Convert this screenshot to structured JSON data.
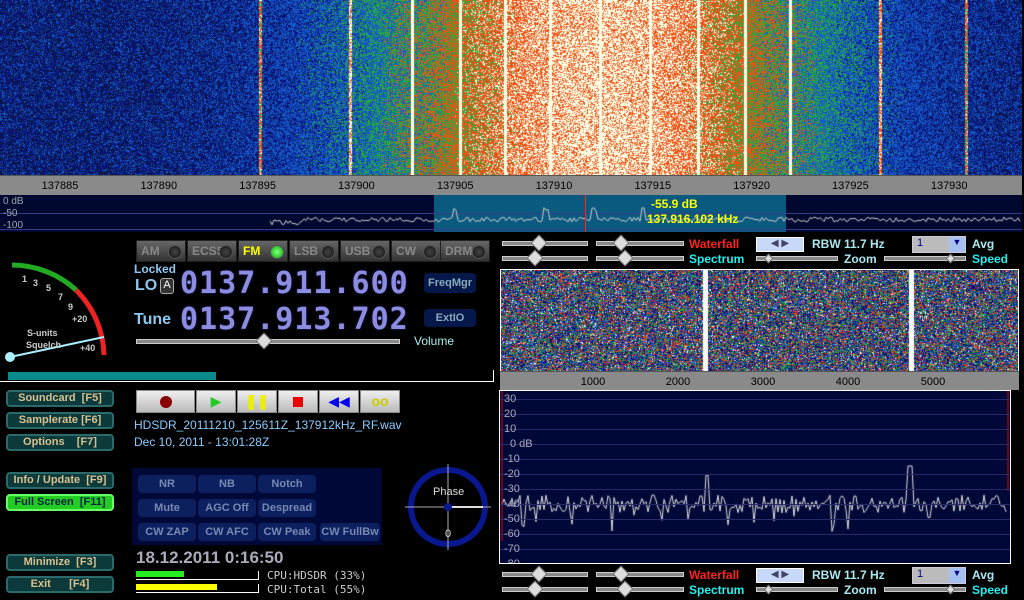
{
  "main_scale": {
    "ticks": [
      "137885",
      "137890",
      "137895",
      "137900",
      "137905",
      "137910",
      "137915",
      "137920",
      "137925",
      "137930"
    ]
  },
  "main_spectrum": {
    "y_labels": [
      "0 dB",
      "-50",
      "-100"
    ],
    "readout_level": "-55.9 dB",
    "readout_freq": "137.916.102 kHz"
  },
  "modes": [
    {
      "label": "AM",
      "active": false
    },
    {
      "label": "ECSS",
      "active": false
    },
    {
      "label": "FM",
      "active": true
    },
    {
      "label": "LSB",
      "active": false
    },
    {
      "label": "USB",
      "active": false
    },
    {
      "label": "CW",
      "active": false
    },
    {
      "label": "DRM",
      "active": false
    }
  ],
  "smeter": {
    "scale": [
      "1",
      "3",
      "5",
      "7",
      "9",
      "+20",
      "+40"
    ],
    "label1": "S-units",
    "label2": "Squelch"
  },
  "lo": {
    "locked": "Locked",
    "label": "LO",
    "badge": "A",
    "value": "0137.911.600"
  },
  "tune": {
    "label": "Tune",
    "value": "0137.913.702"
  },
  "buttons": {
    "freqmgr": "FreqMgr",
    "extio": "ExtIO",
    "volume": "Volume"
  },
  "volume_level": 0.48,
  "function_buttons": [
    {
      "label": "Soundcard  [F5]"
    },
    {
      "label": "Samplerate [F6]"
    },
    {
      "label": "Options    [F7]"
    },
    {
      "label": "Info / Update  [F9]"
    },
    {
      "label": "Full Screen  [F11]"
    },
    {
      "label": "Minimize  [F3]"
    },
    {
      "label": "Exit      [F4]"
    }
  ],
  "recording": {
    "filename": "HDSDR_20111210_125611Z_137912kHz_RF.wav",
    "date": "Dec 10, 2011 - 13:01:28Z"
  },
  "dsp": [
    "NR",
    "NB",
    "Notch",
    "Mute",
    "AGC Off",
    "Despread",
    "CW ZAP",
    "CW AFC",
    "CW Peak",
    "CW FullBw"
  ],
  "phase": {
    "label": "Phase",
    "value": "0"
  },
  "clock": "18.12.2011 0:16:50",
  "cpu": {
    "hdsdr": "CPU:HDSDR (33%)",
    "total": "CPU:Total (55%)",
    "hdsdr_pct": 33,
    "total_pct": 55
  },
  "audio_controls": {
    "waterfall": "Waterfall",
    "spectrum": "Spectrum",
    "rbw": "RBW 11.7 Hz",
    "avg_value": "1",
    "avg": "Avg",
    "zoom": "Zoom",
    "speed": "Speed"
  },
  "audio_scale": {
    "ticks": [
      "1000",
      "2000",
      "3000",
      "4000",
      "5000"
    ]
  },
  "audio_spectrum": {
    "y_labels": [
      "30",
      "20",
      "10",
      "0 dB",
      "-10",
      "-20",
      "-30",
      "-40",
      "-50",
      "-60",
      "-70",
      "-80"
    ]
  },
  "colors": {
    "waterfall_label": "#ff2020",
    "spectrum_label": "#20f0f0",
    "highlight": "#0a5a80",
    "accent_green": "#22cc22"
  }
}
